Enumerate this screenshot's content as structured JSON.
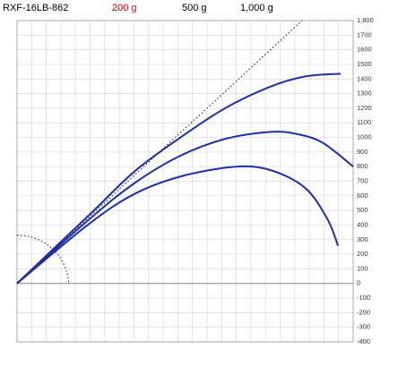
{
  "chart_data": {
    "type": "line",
    "title": "RXF-16LB-862",
    "xlim": [
      0,
      2300
    ],
    "xticks": [
      0,
      100,
      200,
      300,
      400,
      500,
      600,
      700,
      800,
      900,
      1000,
      1100,
      1200,
      1300,
      1400,
      1500,
      1600,
      1700,
      1800,
      1900,
      2000,
      2100,
      2200,
      2300
    ],
    "ylim": [
      -400,
      1800
    ],
    "yticks": [
      -400,
      -300,
      -200,
      -100,
      0,
      100,
      200,
      300,
      400,
      500,
      600,
      700,
      800,
      900,
      1000,
      1100,
      1200,
      1300,
      1400,
      1500,
      1600,
      1700,
      {
        "value": 1800,
        "label": "1,800"
      }
    ],
    "grid": true,
    "series": [
      {
        "name": "200 g",
        "name_color": "#d40000",
        "color": "#1f2fa8",
        "style": "solid",
        "x": [
          0,
          497,
          804,
          1110,
          1417,
          1724,
          1969,
          2215
        ],
        "values": [
          0,
          472,
          767,
          994,
          1196,
          1344,
          1417,
          1436
        ]
      },
      {
        "name": "500 g",
        "name_color": "#000000",
        "color": "#1f2fa8",
        "style": "solid",
        "x": [
          0,
          497,
          804,
          1110,
          1417,
          1724,
          1908,
          2092,
          2300
        ],
        "values": [
          0,
          442,
          687,
          871,
          988,
          1037,
          1025,
          963,
          800
        ]
      },
      {
        "name": "1,000 g",
        "name_color": "#000000",
        "color": "#1f2fa8",
        "style": "solid",
        "x": [
          0,
          497,
          804,
          1110,
          1479,
          1724,
          1969,
          2123,
          2196
        ],
        "values": [
          0,
          411,
          613,
          730,
          798,
          779,
          656,
          442,
          258
        ]
      },
      {
        "color": "#333333",
        "style": "dotted",
        "x": [
          0,
          1950
        ],
        "values": [
          0,
          1800
        ]
      },
      {
        "color": "#1f2fa8",
        "style": "dotted",
        "x": [
          0,
          90,
          175,
          250,
          303,
          340,
          355
        ],
        "values": [
          330,
          320,
          285,
          230,
          165,
          80,
          0
        ]
      }
    ]
  }
}
